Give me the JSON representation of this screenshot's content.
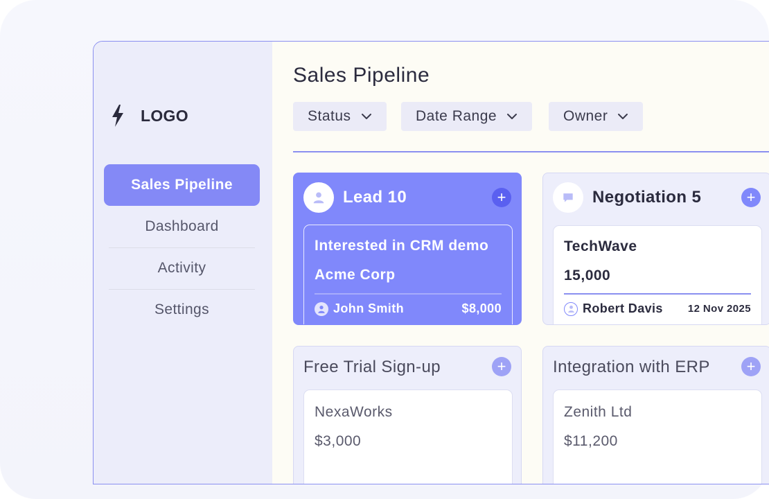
{
  "sidebar": {
    "logo_text": "LOGO",
    "items": [
      {
        "label": "Sales Pipeline",
        "active": true
      },
      {
        "label": "Dashboard"
      },
      {
        "label": "Activity"
      },
      {
        "label": "Settings"
      }
    ]
  },
  "main": {
    "title": "Sales Pipeline",
    "filters": [
      "Status",
      "Date Range",
      "Owner"
    ]
  },
  "columns": [
    {
      "title": "Lead 10",
      "icon": "user-icon",
      "card": {
        "line1": "Interested in CRM demo",
        "line2": "Acme Corp",
        "owner": "John Smith",
        "amount": "$8,000"
      }
    },
    {
      "title": "Negotiation 5",
      "icon": "chat-icon",
      "card": {
        "line1": "TechWave",
        "line2": "15,000",
        "owner": "Robert Davis",
        "date": "12 Nov 2025"
      }
    },
    {
      "title": "Free Trial Sign-up",
      "card": {
        "line1": "NexaWorks",
        "line2": "$3,000"
      }
    },
    {
      "title": "Integration with ERP",
      "card": {
        "line1": "Zenith Ltd",
        "line2": "$11,200"
      }
    }
  ],
  "colors": {
    "accent": "#8088fb",
    "accent_dark": "#5a60f0",
    "sidebar_bg": "#ecedfa",
    "main_bg": "#fdfcf5"
  }
}
